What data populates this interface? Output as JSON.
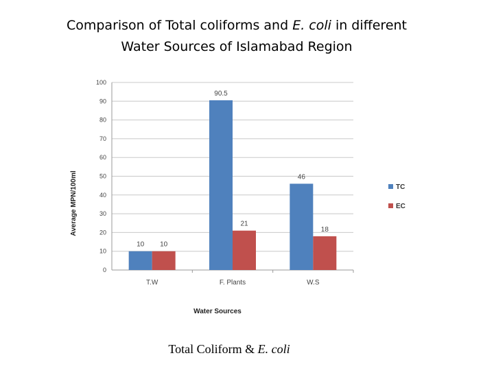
{
  "page": {
    "title_line1_prefix": "Comparison of Total coliforms and ",
    "title_line1_italic": "E. coli",
    "title_line1_suffix": " in different",
    "title_line2": "Water Sources of Islamabad Region",
    "caption_prefix": "Total Coliform & ",
    "caption_italic": "E. coli"
  },
  "chart_data": {
    "type": "bar",
    "categories": [
      "T.W",
      "F. Plants",
      "W.S"
    ],
    "series": [
      {
        "name": "TC",
        "values": [
          10,
          90.5,
          46
        ],
        "labels": [
          "10",
          "90.5",
          "46"
        ],
        "color": "#4f81bd"
      },
      {
        "name": "EC",
        "values": [
          10,
          21,
          18
        ],
        "labels": [
          "10",
          "21",
          "18"
        ],
        "color": "#c0504d"
      }
    ],
    "xlabel": "Water Sources",
    "ylabel": "Average  MPN/100ml",
    "ylim": [
      0,
      100
    ],
    "yticks": [
      0,
      10,
      20,
      30,
      40,
      50,
      60,
      70,
      80,
      90,
      100
    ],
    "grid": true,
    "legend_position": "right"
  }
}
